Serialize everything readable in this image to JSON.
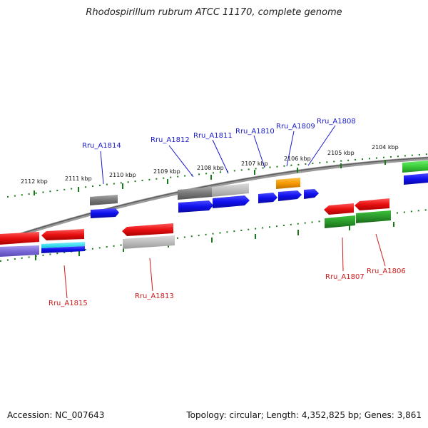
{
  "title": "Rhodospirillum rubrum ATCC 11170, complete genome",
  "footer": {
    "accession": "Accession: NC_007643",
    "summary": "Topology: circular; Length: 4,352,825 bp; Genes: 3,861"
  },
  "scale_labels": [
    "2112 kbp",
    "2111 kbp",
    "2110 kbp",
    "2109 kbp",
    "2108 kbp",
    "2107 kbp",
    "2106 kbp",
    "2105 kbp",
    "2104 kbp"
  ],
  "gene_labels_top": [
    "Rru_A1814",
    "Rru_A1812",
    "Rru_A1811",
    "Rru_A1810",
    "Rru_A1809",
    "Rru_A1808"
  ],
  "gene_labels_bottom": [
    "Rru_A1815",
    "Rru_A1813",
    "Rru_A1807",
    "Rru_A1806"
  ],
  "colors": {
    "forward_cds": "#1010ee",
    "reverse_cds": "#e81010",
    "orange_cds": "#f59a00",
    "green_cds": "#2a9a2a",
    "grey_cds": "#8c8c8c",
    "light_grey_cds": "#bdbdbd",
    "lavender_cds": "#7a6ad8",
    "cyan_cds": "#20e0f0",
    "tick_green": "#1a7a1a",
    "backbone": "#7a7a7a"
  }
}
